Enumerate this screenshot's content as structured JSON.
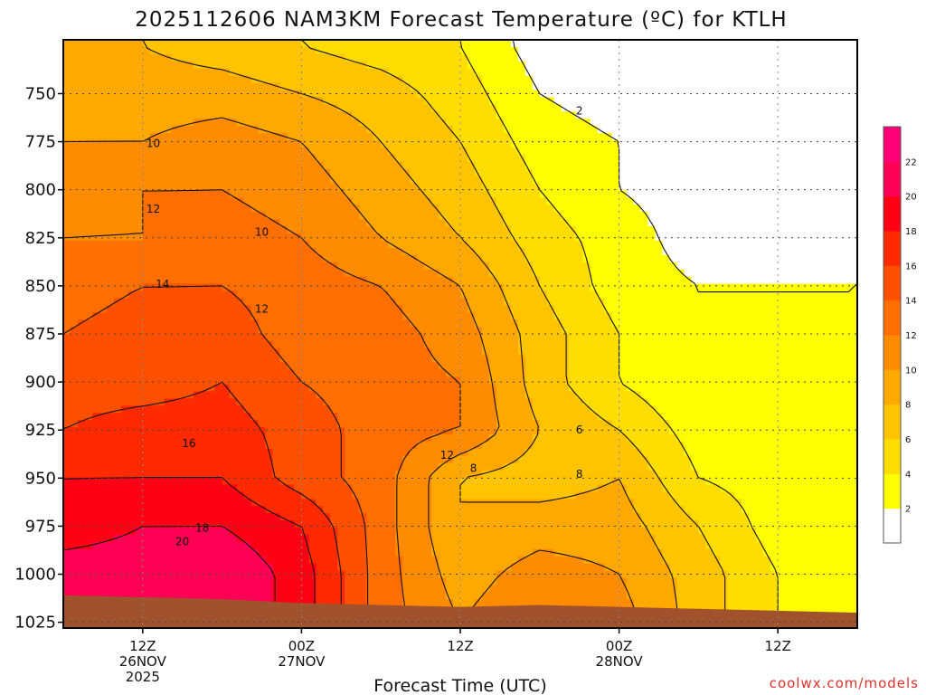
{
  "title": "2025112606 NAM3KM Forecast Temperature (ºC) for KTLH",
  "credit": "coolwx.com/models",
  "colors": {
    "bands": [
      "#ffffff",
      "#ffff00",
      "#ffdd00",
      "#ffc400",
      "#ffa800",
      "#ff8c00",
      "#ff6e00",
      "#ff5000",
      "#ff2a00",
      "#ff0015",
      "#ff0055",
      "#ff0077"
    ],
    "ground": "#a0522d",
    "grid": "#444444",
    "contour": "#111111",
    "zero_line": "#cc0077"
  },
  "chart_data": {
    "type": "heatmap",
    "title": "2025112606 NAM3KM Forecast Temperature (ºC) for KTLH",
    "xlabel": "Forecast Time (UTC)",
    "ylabel": "",
    "x_hours": [
      0,
      6,
      12,
      18,
      24,
      30,
      36,
      42,
      48,
      54,
      60
    ],
    "x_range_hours": [
      0,
      60
    ],
    "x_ticks": [
      {
        "hour": 6,
        "label": "12Z",
        "date": "26NOV",
        "year": "2025"
      },
      {
        "hour": 18,
        "label": "00Z",
        "date": "27NOV",
        "year": ""
      },
      {
        "hour": 30,
        "label": "12Z",
        "date": "",
        "year": ""
      },
      {
        "hour": 42,
        "label": "00Z",
        "date": "28NOV",
        "year": ""
      },
      {
        "hour": 54,
        "label": "12Z",
        "date": "",
        "year": ""
      }
    ],
    "pressure_levels": [
      725,
      750,
      775,
      800,
      825,
      850,
      875,
      900,
      925,
      950,
      975,
      1000,
      1025
    ],
    "y_ticks": [
      750,
      775,
      800,
      825,
      850,
      875,
      900,
      925,
      950,
      975,
      1000,
      1025
    ],
    "y_range_hpa": [
      722,
      1028
    ],
    "surface_pressure_hpa": [
      1011,
      1012,
      1013,
      1015,
      1016,
      1017,
      1016,
      1017,
      1018,
      1019,
      1020
    ],
    "temperature_c": [
      [
        8,
        8,
        7,
        6,
        5,
        4,
        1,
        0,
        0,
        1,
        2
      ],
      [
        9,
        9,
        9,
        8,
        7,
        5,
        2,
        1,
        0,
        1,
        2
      ],
      [
        10,
        10,
        11,
        10,
        8,
        6,
        3,
        2,
        1,
        1,
        2
      ],
      [
        11,
        12,
        12,
        11,
        9,
        7,
        4,
        2,
        1,
        1,
        2
      ],
      [
        12,
        12,
        13,
        12,
        10,
        8,
        5,
        3,
        1,
        1,
        2
      ],
      [
        13,
        14,
        14,
        13,
        12,
        10,
        6,
        3,
        2,
        2,
        2
      ],
      [
        14,
        15,
        15,
        13,
        13,
        11,
        7,
        4,
        2,
        2,
        2
      ],
      [
        15,
        15,
        16,
        14,
        13,
        12,
        7,
        4,
        2,
        2,
        2
      ],
      [
        16,
        17,
        17,
        15,
        13,
        12,
        8,
        6,
        3,
        2,
        2
      ],
      [
        18,
        18,
        18,
        15,
        13,
        8,
        7,
        8,
        4,
        3,
        2
      ],
      [
        19,
        20,
        20,
        18,
        13,
        8,
        9,
        9,
        6,
        3,
        3
      ],
      [
        21,
        21,
        22,
        19,
        13,
        9,
        11,
        10,
        7,
        4,
        3
      ],
      [
        21,
        21,
        22,
        19,
        13,
        10,
        12,
        11,
        7,
        4,
        3
      ]
    ],
    "contour_levels": [
      2,
      4,
      6,
      8,
      10,
      12,
      14,
      16,
      18,
      20
    ],
    "contour_labels": [
      {
        "text": "10",
        "hour": 6.8,
        "hpa": 776
      },
      {
        "text": "12",
        "hour": 6.8,
        "hpa": 810
      },
      {
        "text": "10",
        "hour": 15.0,
        "hpa": 822
      },
      {
        "text": "14",
        "hour": 7.5,
        "hpa": 849
      },
      {
        "text": "12",
        "hour": 15.0,
        "hpa": 862
      },
      {
        "text": "2",
        "hour": 39.0,
        "hpa": 759
      },
      {
        "text": "16",
        "hour": 9.5,
        "hpa": 932
      },
      {
        "text": "12",
        "hour": 29.0,
        "hpa": 938
      },
      {
        "text": "8",
        "hour": 31.0,
        "hpa": 945
      },
      {
        "text": "6",
        "hour": 39.0,
        "hpa": 925
      },
      {
        "text": "8",
        "hour": 39.0,
        "hpa": 948
      },
      {
        "text": "18",
        "hour": 10.5,
        "hpa": 976
      },
      {
        "text": "20",
        "hour": 9.0,
        "hpa": 983
      }
    ],
    "colorbar": {
      "levels": [
        0,
        2,
        4,
        6,
        8,
        10,
        12,
        14,
        16,
        18,
        20,
        22,
        24
      ],
      "tick_labels": [
        "2",
        "4",
        "6",
        "8",
        "10",
        "12",
        "14",
        "16",
        "18",
        "20",
        "22"
      ],
      "unit": "ºC"
    }
  }
}
